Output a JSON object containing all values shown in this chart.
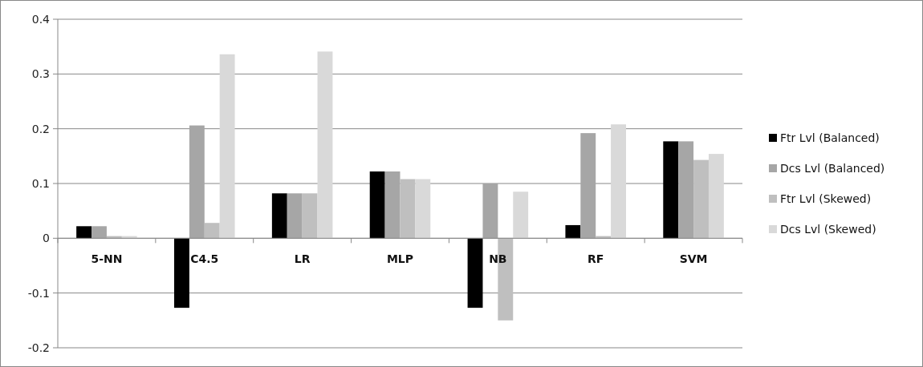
{
  "chart_data": {
    "type": "bar",
    "categories": [
      "5-NN",
      "C4.5",
      "LR",
      "MLP",
      "NB",
      "RF",
      "SVM"
    ],
    "series": [
      {
        "name": "Ftr Lvl (Balanced)",
        "color": "#000000",
        "values": [
          0.022,
          -0.127,
          0.082,
          0.122,
          -0.127,
          0.024,
          0.177
        ]
      },
      {
        "name": "Dcs Lvl (Balanced)",
        "color": "#a6a6a6",
        "values": [
          0.022,
          0.206,
          0.082,
          0.122,
          0.1,
          0.192,
          0.177
        ]
      },
      {
        "name": "Ftr Lvl (Skewed)",
        "color": "#bfbfbf",
        "values": [
          0.004,
          0.028,
          0.082,
          0.108,
          -0.15,
          0.004,
          0.143
        ]
      },
      {
        "name": "Dcs Lvl (Skewed)",
        "color": "#d9d9d9",
        "values": [
          0.004,
          0.336,
          0.341,
          0.108,
          0.085,
          0.208,
          0.154
        ]
      }
    ],
    "ylim": [
      -0.2,
      0.4
    ],
    "yticks": [
      -0.2,
      -0.1,
      0,
      0.1,
      0.2,
      0.3,
      0.4
    ],
    "grid": "y",
    "legend": "right"
  }
}
